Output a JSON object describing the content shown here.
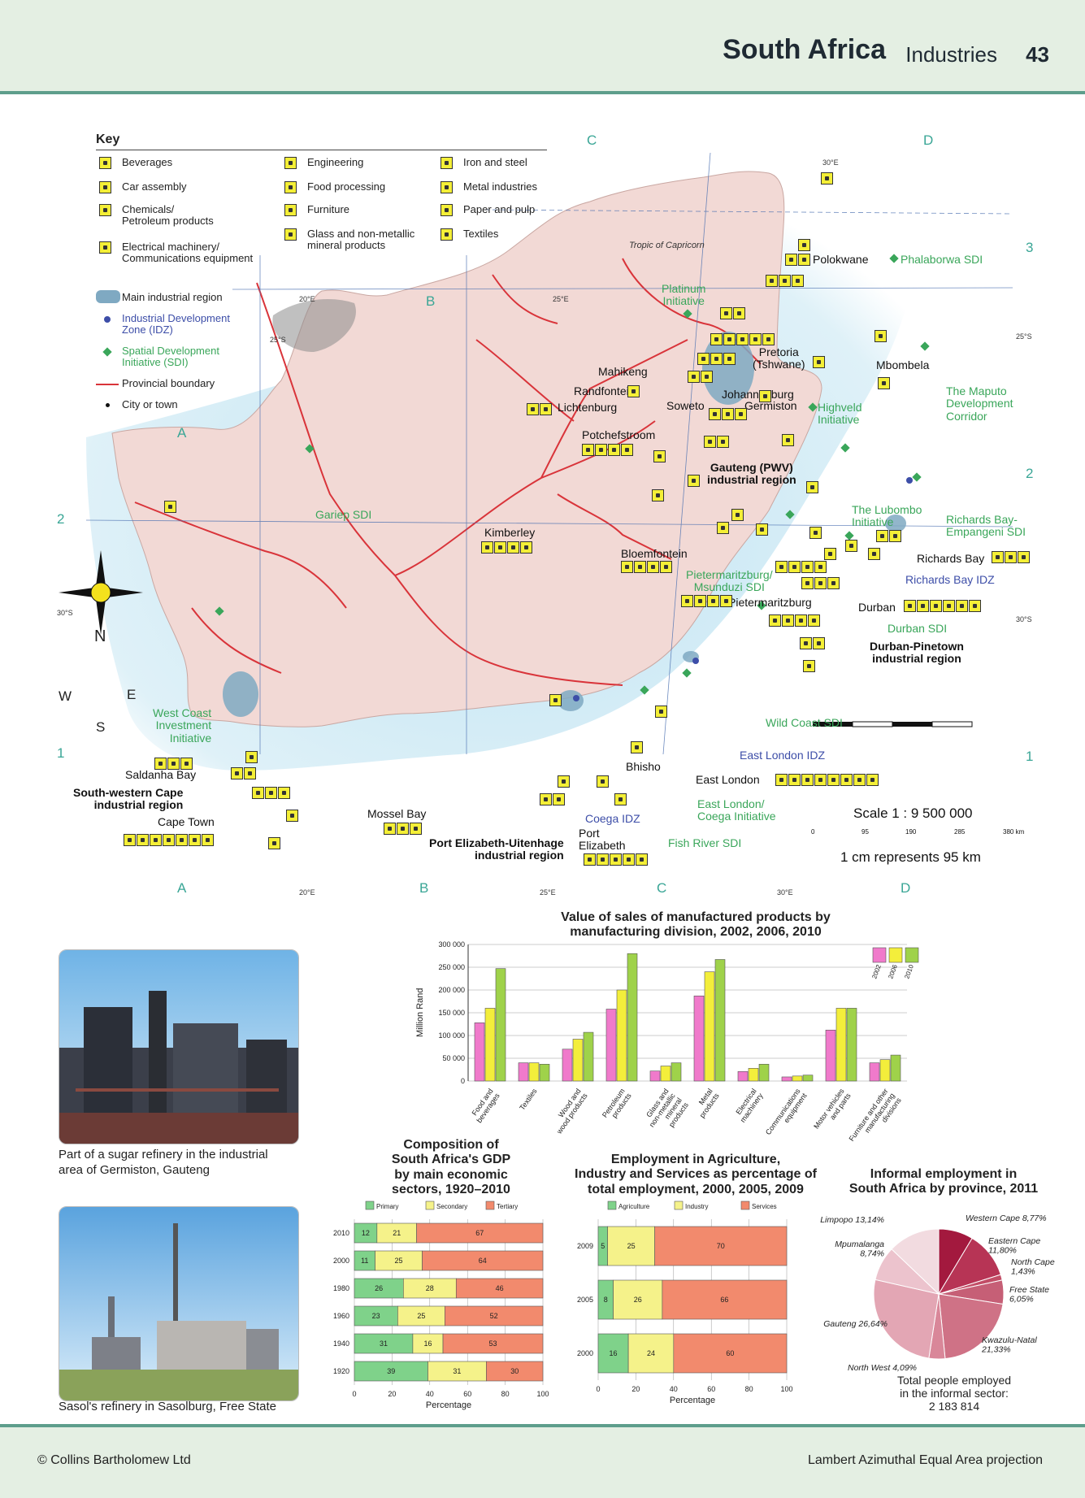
{
  "header": {
    "title": "South Africa",
    "subtitle": "Industries",
    "page": "43"
  },
  "key": {
    "title": "Key",
    "industries": [
      {
        "label": "Beverages",
        "icon": "beverages-icon"
      },
      {
        "label": "Car assembly",
        "icon": "car-assembly-icon"
      },
      {
        "label": "Chemicals/\nPetroleum products",
        "icon": "chemicals-icon"
      },
      {
        "label": "Electrical machinery/\nCommunications equipment",
        "icon": "electrical-icon"
      },
      {
        "label": "Engineering",
        "icon": "engineering-icon"
      },
      {
        "label": "Food processing",
        "icon": "food-processing-icon"
      },
      {
        "label": "Furniture",
        "icon": "furniture-icon"
      },
      {
        "label": "Glass and non-metallic\nmineral products",
        "icon": "glass-icon"
      },
      {
        "label": "Iron and steel",
        "icon": "iron-steel-icon"
      },
      {
        "label": "Metal industries",
        "icon": "metal-icon"
      },
      {
        "label": "Paper and pulp",
        "icon": "paper-icon"
      },
      {
        "label": "Textiles",
        "icon": "textiles-icon"
      }
    ],
    "symbols": [
      {
        "label": "Main industrial region"
      },
      {
        "label": "Industrial Development\nZone (IDZ)"
      },
      {
        "label": "Spatial Development\nInitiative (SDI)"
      },
      {
        "label": "Provincial boundary"
      },
      {
        "label": "City or town"
      }
    ]
  },
  "map": {
    "colors": {
      "land": "#f2d9d5",
      "sea": "#bfe3f2",
      "boundary": "#d9343a",
      "region": "#7fa9c2",
      "sdi": "#3aa65a",
      "idz": "#3d4ea8",
      "icon": "#f4ef37"
    },
    "grid_letters": [
      "A",
      "B",
      "C",
      "D"
    ],
    "grid_numbers": [
      "1",
      "2",
      "3"
    ],
    "degrees": [
      "20°E",
      "25°E",
      "30°E",
      "25°S",
      "30°S"
    ],
    "tropic": "Tropic of Capricorn",
    "compass": [
      "N",
      "S",
      "E",
      "W"
    ],
    "cities": [
      "Polokwane",
      "Mahikeng",
      "Pretoria\n(Tshwane)",
      "Mbombela",
      "Randfontein",
      "Johannesburg",
      "Lichtenburg",
      "Soweto",
      "Germiston",
      "Potchefstroom",
      "Kimberley",
      "Bloemfontein",
      "Richards Bay",
      "Pietermaritzburg",
      "Durban",
      "Saldanha Bay",
      "Cape Town",
      "Mossel Bay",
      "Port\nElizabeth",
      "Bhisho",
      "East London"
    ],
    "sdis": [
      "Phalaborwa SDI",
      "Platinum\nInitiative",
      "The Maputo\nDevelopment\nCorridor",
      "Highveld\nInitiative",
      "Gariep SDI",
      "The Lubombo\nInitiative",
      "Richards Bay-\nEmpangeni SDI",
      "Pietermaritzburg/\nMsunduzi SDI",
      "Durban SDI",
      "West Coast\nInvestment\nInitiative",
      "Wild Coast SDI",
      "East London/\nCoega Initiative",
      "Fish River SDI"
    ],
    "idzs": [
      "Richards Bay IDZ",
      "East London IDZ",
      "Coega IDZ"
    ],
    "regions": [
      "Gauteng (PWV)\nindustrial region",
      "Durban-Pinetown\nindustrial region",
      "South-western Cape\nindustrial region",
      "Port Elizabeth-Uitenhage\nindustrial region"
    ],
    "scale": {
      "ratio": "Scale 1 : 9 500 000",
      "ticks": [
        "0",
        "95",
        "190",
        "285",
        "380 km"
      ],
      "note": "1 cm represents 95 km"
    }
  },
  "photos": [
    {
      "caption": "Part of a sugar refinery in the industrial\narea of Germiston, Gauteng"
    },
    {
      "caption": "Sasol's refinery in Sasolburg, Free State"
    }
  ],
  "chart_data": [
    {
      "type": "bar",
      "title": "Value of sales of manufactured products by\nmanufacturing division, 2002, 2006, 2010",
      "ylabel": "Million Rand",
      "ylim": [
        0,
        300000
      ],
      "yticks": [
        "0",
        "50 000",
        "100 000",
        "150 000",
        "200 000",
        "250 000",
        "300 000"
      ],
      "categories": [
        "Food and\nbeverages",
        "Textiles",
        "Wood and\nwood products",
        "Petroleum\nproducts",
        "Glass and\nnon-metallic\nmineral\nproducts",
        "Metal\nproducts",
        "Electrical\nmachinery",
        "Communications\nequipment",
        "Motor vehicles\nand parts",
        "Furniture and other\nmanufacturing\ndivisions"
      ],
      "series": [
        {
          "name": "2002",
          "color": "#f07acb",
          "values": [
            128000,
            40000,
            70000,
            158000,
            22000,
            187000,
            21000,
            9000,
            112000,
            40000
          ]
        },
        {
          "name": "2006",
          "color": "#f3ee3b",
          "values": [
            160000,
            40000,
            92000,
            200000,
            33000,
            240000,
            28000,
            11000,
            160000,
            47000
          ]
        },
        {
          "name": "2010",
          "color": "#9fd24a",
          "values": [
            247000,
            37000,
            107000,
            280000,
            40000,
            267000,
            37000,
            13000,
            160000,
            57000
          ]
        }
      ]
    },
    {
      "type": "bar",
      "title": "Composition of\nSouth Africa's GDP\nby main economic\nsectors, 1920–2010",
      "xlabel": "Percentage",
      "xticks": [
        "0",
        "20",
        "40",
        "60",
        "80",
        "100"
      ],
      "categories": [
        "2010",
        "2000",
        "1980",
        "1960",
        "1940",
        "1920"
      ],
      "series": [
        {
          "name": "Primary",
          "color": "#7fd28a",
          "values": [
            12,
            11,
            26,
            23,
            31,
            39
          ]
        },
        {
          "name": "Secondary",
          "color": "#f5f28a",
          "values": [
            21,
            25,
            28,
            25,
            16,
            31
          ]
        },
        {
          "name": "Tertiary",
          "color": "#f28a6d",
          "values": [
            67,
            64,
            46,
            52,
            53,
            30
          ]
        }
      ]
    },
    {
      "type": "bar",
      "title": "Employment in Agriculture,\nIndustry and Services as percentage of\ntotal employment, 2000, 2005, 2009",
      "xlabel": "Percentage",
      "xticks": [
        "0",
        "20",
        "40",
        "60",
        "80",
        "100"
      ],
      "categories": [
        "2009",
        "2005",
        "2000"
      ],
      "series": [
        {
          "name": "Agriculture",
          "color": "#7fd28a",
          "values": [
            5,
            8,
            16
          ]
        },
        {
          "name": "Industry",
          "color": "#f5f28a",
          "values": [
            25,
            26,
            24
          ]
        },
        {
          "name": "Services",
          "color": "#f28a6d",
          "values": [
            70,
            66,
            60
          ]
        }
      ]
    },
    {
      "type": "pie",
      "title": "Informal employment in\nSouth Africa by province, 2011",
      "slices": [
        {
          "label": "Western Cape 8,77%",
          "value": 8.77,
          "color": "#a3193e"
        },
        {
          "label": "Eastern Cape\n11,80%",
          "value": 11.8,
          "color": "#b73455"
        },
        {
          "label": "North Cape\n1,43%",
          "value": 1.43,
          "color": "#c24d66"
        },
        {
          "label": "Free State\n6,05%",
          "value": 6.05,
          "color": "#c65f76"
        },
        {
          "label": "Kwazulu-Natal\n21,33%",
          "value": 21.33,
          "color": "#cf7286"
        },
        {
          "label": "North West 4,09%",
          "value": 4.09,
          "color": "#d98799"
        },
        {
          "label": "Gauteng 26,64%",
          "value": 26.64,
          "color": "#e3a6b4"
        },
        {
          "label": "Mpumalanga\n8,74%",
          "value": 8.74,
          "color": "#ecc3cd"
        },
        {
          "label": "Limpopo 13,14%",
          "value": 13.14,
          "color": "#f2dbe0"
        }
      ],
      "note": "Total people employed\nin the informal sector:\n2 183 814"
    }
  ],
  "footer": {
    "left": "© Collins Bartholomew Ltd",
    "right": "Lambert Azimuthal Equal Area projection"
  }
}
